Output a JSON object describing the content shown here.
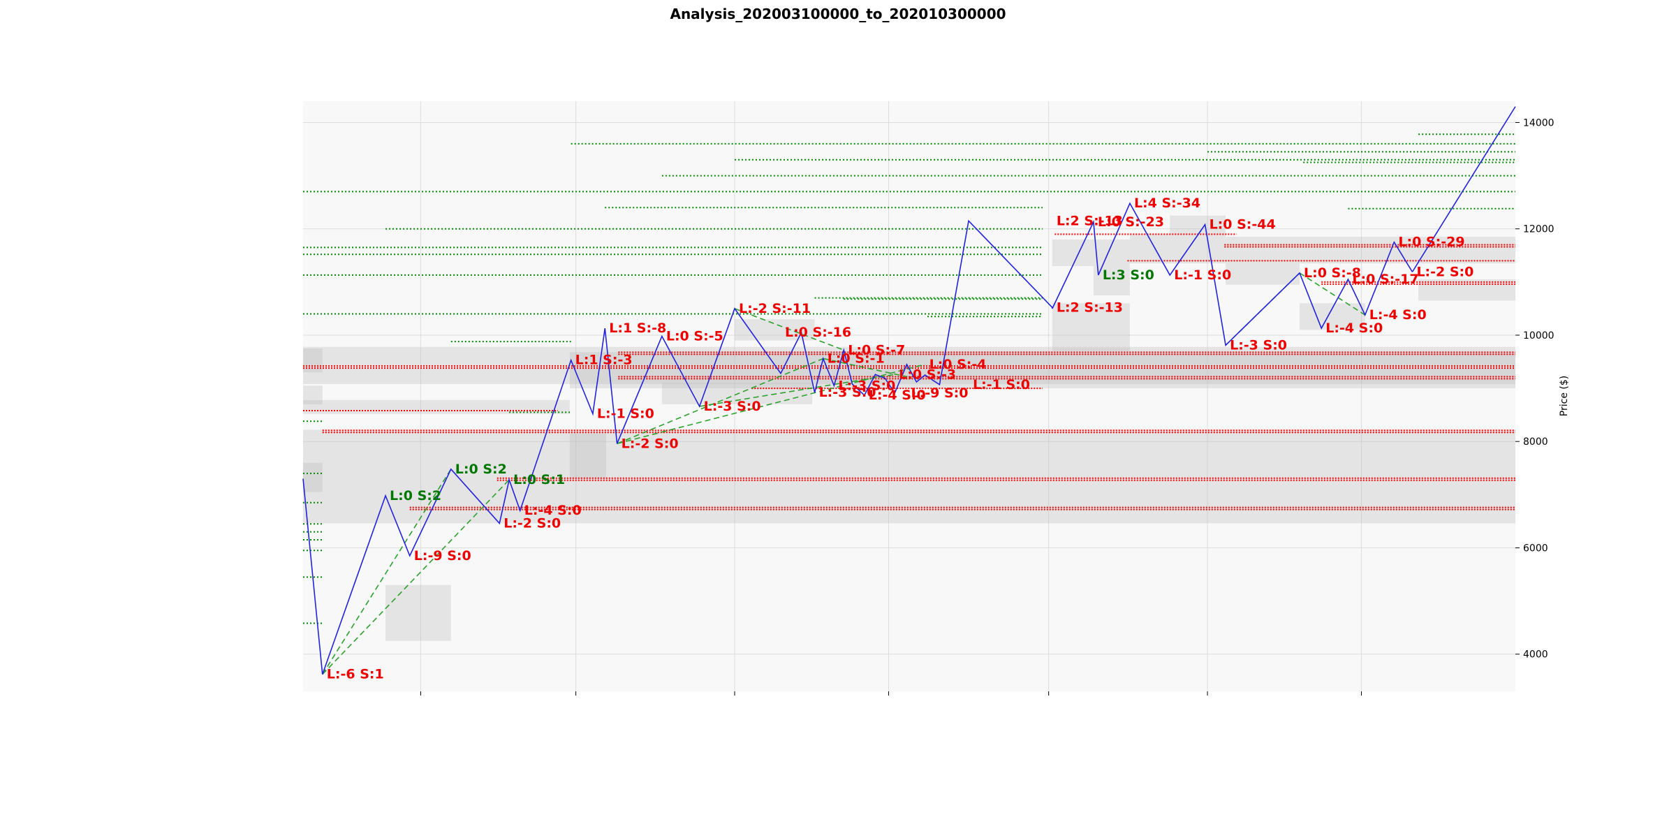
{
  "chart_data": {
    "type": "line",
    "title": "Analysis_202003100000_to_202010300000",
    "xlabel": "",
    "ylabel": "Price ($)",
    "ylim": [
      3300,
      14400
    ],
    "xlim": [
      0,
      100
    ],
    "y_ticks": [
      4000,
      6000,
      8000,
      10000,
      12000,
      14000
    ],
    "y_tick_labels": [
      "4000",
      "6000",
      "8000",
      "10000",
      "12000",
      "14000"
    ],
    "x_ticks": [
      9.7,
      22.5,
      35.6,
      48.3,
      61.5,
      74.6,
      87.3
    ],
    "grid": true,
    "colors": {
      "price_line": "#2222dd",
      "trend_line": "#2ca02c",
      "resistance": "#ee0000",
      "support": "#008800",
      "zone": "#bbbbbb",
      "label_red": "#ee0000",
      "label_green": "#007700"
    },
    "series": [
      {
        "x": [
          0,
          1.6,
          6.8,
          8.8,
          12.2,
          16.2,
          17,
          17.9,
          22.1,
          23.9,
          24.9,
          25.9,
          29.6,
          32.7,
          35.6,
          39.4,
          41.1,
          42.2,
          42.9,
          43.8,
          44.6,
          45.3,
          46.3,
          47.2,
          48,
          48.8,
          49.8,
          50.6,
          51.3,
          52.5,
          54.9,
          61.8,
          61.8,
          65.2,
          65.6,
          68.2,
          71.5,
          74.4,
          76.1,
          82.2,
          84,
          86.2,
          87.6,
          90,
          91.5
        ],
        "values": [
          7300,
          3620,
          6980,
          5850,
          7480,
          6460,
          7280,
          6700,
          9530,
          8520,
          10130,
          7960,
          9980,
          8660,
          10500,
          9280,
          10050,
          8920,
          9560,
          9050,
          9720,
          9080,
          8870,
          9260,
          9190,
          8910,
          9450,
          9120,
          9250,
          9070,
          12150,
          10520,
          10500,
          12130,
          11130,
          12480,
          11130,
          12080,
          9810,
          11170,
          10130,
          11050,
          10380,
          11750,
          11190
        ]
      },
      {
        "x": [
          91.5,
          100
        ],
        "values": [
          11190,
          14300
        ]
      }
    ],
    "annotations": [
      {
        "text": "L:-6 S:1",
        "x": 1.6,
        "y": 3620,
        "color": "red"
      },
      {
        "text": "L:0 S:2",
        "x": 6.8,
        "y": 6980,
        "color": "green"
      },
      {
        "text": "L:-9 S:0",
        "x": 8.8,
        "y": 5850,
        "color": "red"
      },
      {
        "text": "L:0 S:2",
        "x": 12.2,
        "y": 7480,
        "color": "green"
      },
      {
        "text": "L:-2 S:0",
        "x": 16.2,
        "y": 6460,
        "color": "red"
      },
      {
        "text": "L:0 S:1",
        "x": 17,
        "y": 7280,
        "color": "green"
      },
      {
        "text": "L:-4 S:0",
        "x": 17.9,
        "y": 6700,
        "color": "red"
      },
      {
        "text": "L:1 S:-3",
        "x": 22.1,
        "y": 9530,
        "color": "red"
      },
      {
        "text": "L:-1 S:0",
        "x": 23.9,
        "y": 8520,
        "color": "red"
      },
      {
        "text": "L:1 S:-8",
        "x": 24.9,
        "y": 10130,
        "color": "red"
      },
      {
        "text": "L:-2 S:0",
        "x": 25.9,
        "y": 7960,
        "color": "red"
      },
      {
        "text": "L:0 S:-5",
        "x": 29.6,
        "y": 9980,
        "color": "red"
      },
      {
        "text": "L:-3 S:0",
        "x": 32.7,
        "y": 8660,
        "color": "red"
      },
      {
        "text": "L:-2 S:-11",
        "x": 35.6,
        "y": 10500,
        "color": "red"
      },
      {
        "text": "L:0 S:-16",
        "x": 39.4,
        "y": 10050,
        "color": "red"
      },
      {
        "text": "L:-3 S:0",
        "x": 42.2,
        "y": 8920,
        "color": "red"
      },
      {
        "text": "L:0 S:-1",
        "x": 42.9,
        "y": 9560,
        "color": "red"
      },
      {
        "text": "L:-3 S:0",
        "x": 43.8,
        "y": 9050,
        "color": "red"
      },
      {
        "text": "L:0 S:-7",
        "x": 44.6,
        "y": 9720,
        "color": "red"
      },
      {
        "text": "L:-4 S:0",
        "x": 46.3,
        "y": 8870,
        "color": "red"
      },
      {
        "text": "L:0 S:-3",
        "x": 48.8,
        "y": 9260,
        "color": "red"
      },
      {
        "text": "L:0 S:-4",
        "x": 51.3,
        "y": 9450,
        "color": "red"
      },
      {
        "text": "L:-9 S:0",
        "x": 49.8,
        "y": 8910,
        "color": "red"
      },
      {
        "text": "L:-1 S:0",
        "x": 54.9,
        "y": 9070,
        "color": "red"
      },
      {
        "text": "L:2 S:-13",
        "x": 61.8,
        "y": 12150,
        "color": "red"
      },
      {
        "text": "L:2 S:-13",
        "x": 61.8,
        "y": 10520,
        "color": "red"
      },
      {
        "text": "L:0 S:-23",
        "x": 65.2,
        "y": 12130,
        "color": "red"
      },
      {
        "text": "L:3 S:0",
        "x": 65.6,
        "y": 11130,
        "color": "green"
      },
      {
        "text": "L:4 S:-34",
        "x": 68.2,
        "y": 12480,
        "color": "red"
      },
      {
        "text": "L:-1 S:0",
        "x": 71.5,
        "y": 11130,
        "color": "red"
      },
      {
        "text": "L:0 S:-44",
        "x": 74.4,
        "y": 12080,
        "color": "red"
      },
      {
        "text": "L:-3 S:0",
        "x": 76.1,
        "y": 9810,
        "color": "red"
      },
      {
        "text": "L:0 S:-8",
        "x": 82.2,
        "y": 11170,
        "color": "red"
      },
      {
        "text": "L:-4 S:0",
        "x": 84,
        "y": 10130,
        "color": "red"
      },
      {
        "text": "L:0 S:-17",
        "x": 86.2,
        "y": 11050,
        "color": "red"
      },
      {
        "text": "L:-4 S:0",
        "x": 87.6,
        "y": 10380,
        "color": "red"
      },
      {
        "text": "L:0 S:-29",
        "x": 90,
        "y": 11750,
        "color": "red"
      },
      {
        "text": "L:-2 S:0",
        "x": 91.5,
        "y": 11190,
        "color": "red"
      }
    ],
    "trend_lines": [
      {
        "x": [
          1.6,
          12.2
        ],
        "y": [
          3620,
          7480
        ]
      },
      {
        "x": [
          1.6,
          17
        ],
        "y": [
          3620,
          7280
        ]
      },
      {
        "x": [
          25.9,
          42.9
        ],
        "y": [
          7960,
          9560
        ]
      },
      {
        "x": [
          25.9,
          51.3
        ],
        "y": [
          7960,
          9450
        ]
      },
      {
        "x": [
          32.7,
          48.8
        ],
        "y": [
          8660,
          9260
        ]
      },
      {
        "x": [
          35.6,
          44.6
        ],
        "y": [
          10500,
          9720
        ]
      },
      {
        "x": [
          42.9,
          49.8
        ],
        "y": [
          9560,
          9220
        ]
      },
      {
        "x": [
          76.1,
          82.2
        ],
        "y": [
          9810,
          11170
        ]
      },
      {
        "x": [
          82.2,
          87.6
        ],
        "y": [
          11170,
          10380
        ]
      }
    ],
    "resistance_levels": [
      {
        "y": 9420,
        "x0": 0,
        "x1": 100,
        "double": true
      },
      {
        "y": 9220,
        "x0": 26,
        "x1": 100,
        "double": true
      },
      {
        "y": 9680,
        "x0": 26,
        "x1": 100,
        "double": true
      },
      {
        "y": 8210,
        "x0": 1.6,
        "x1": 100,
        "double": true
      },
      {
        "y": 7310,
        "x0": 16,
        "x1": 100,
        "double": true
      },
      {
        "y": 6760,
        "x0": 8.8,
        "x1": 100,
        "double": true
      },
      {
        "y": 11700,
        "x0": 76,
        "x1": 100,
        "double": true
      },
      {
        "y": 11000,
        "x0": 84,
        "x1": 100,
        "double": true
      },
      {
        "y": 11400,
        "x0": 68,
        "x1": 100,
        "double": false
      },
      {
        "y": 11900,
        "x0": 62,
        "x1": 77,
        "double": false
      },
      {
        "y": 8580,
        "x0": 0,
        "x1": 21,
        "double": false
      },
      {
        "y": 9000,
        "x0": 37,
        "x1": 61,
        "double": false
      }
    ],
    "support_levels": [
      {
        "y": 13600,
        "x0": 22.1,
        "x1": 100
      },
      {
        "y": 13300,
        "x0": 35.6,
        "x1": 100
      },
      {
        "y": 13000,
        "x0": 29.6,
        "x1": 100
      },
      {
        "y": 12700,
        "x0": 0,
        "x1": 100
      },
      {
        "y": 12400,
        "x0": 24.9,
        "x1": 61
      },
      {
        "y": 12000,
        "x0": 6.8,
        "x1": 61
      },
      {
        "y": 11650,
        "x0": 0,
        "x1": 61
      },
      {
        "y": 11520,
        "x0": 0,
        "x1": 61
      },
      {
        "y": 11130,
        "x0": 0,
        "x1": 61
      },
      {
        "y": 10400,
        "x0": 0,
        "x1": 61
      },
      {
        "y": 10700,
        "x0": 42.2,
        "x1": 61
      },
      {
        "y": 10680,
        "x0": 44.6,
        "x1": 61
      },
      {
        "y": 10350,
        "x0": 51.5,
        "x1": 61
      },
      {
        "y": 9880,
        "x0": 12.2,
        "x1": 22.1
      },
      {
        "y": 8550,
        "x0": 17,
        "x1": 22.1
      },
      {
        "y": 13780,
        "x0": 92,
        "x1": 100
      },
      {
        "y": 13450,
        "x0": 74.6,
        "x1": 100
      },
      {
        "y": 13250,
        "x0": 82.5,
        "x1": 100
      },
      {
        "y": 12380,
        "x0": 86.2,
        "x1": 100
      },
      {
        "y": 8380,
        "x0": 0,
        "x1": 1.6
      },
      {
        "y": 7400,
        "x0": 0,
        "x1": 1.6
      },
      {
        "y": 6850,
        "x0": 0,
        "x1": 1.6
      },
      {
        "y": 6450,
        "x0": 0,
        "x1": 1.6
      },
      {
        "y": 6300,
        "x0": 0,
        "x1": 1.6
      },
      {
        "y": 6150,
        "x0": 0,
        "x1": 1.6
      },
      {
        "y": 5950,
        "x0": 0,
        "x1": 1.6
      },
      {
        "y": 5450,
        "x0": 0,
        "x1": 1.6
      },
      {
        "y": 4580,
        "x0": 0,
        "x1": 1.6
      }
    ],
    "zones": [
      {
        "x0": 0,
        "x1": 100,
        "y0": 9080,
        "y1": 9780
      },
      {
        "x0": 0,
        "x1": 22,
        "y0": 8520,
        "y1": 8780
      },
      {
        "x0": 0,
        "x1": 100,
        "y0": 6460,
        "y1": 8220
      },
      {
        "x0": 22,
        "x1": 100,
        "y0": 9000,
        "y1": 9680
      },
      {
        "x0": 6.8,
        "x1": 12.2,
        "y0": 4250,
        "y1": 5300
      },
      {
        "x0": 22,
        "x1": 25,
        "y0": 7300,
        "y1": 8150
      },
      {
        "x0": 0,
        "x1": 1.6,
        "y0": 7050,
        "y1": 7600
      },
      {
        "x0": 0,
        "x1": 1.6,
        "y0": 8700,
        "y1": 9050
      },
      {
        "x0": 0,
        "x1": 1.6,
        "y0": 9300,
        "y1": 9750
      },
      {
        "x0": 61.8,
        "x1": 68.2,
        "y0": 9700,
        "y1": 10600
      },
      {
        "x0": 61.8,
        "x1": 68.2,
        "y0": 11300,
        "y1": 11800
      },
      {
        "x0": 65.2,
        "x1": 68.2,
        "y0": 10750,
        "y1": 11300
      },
      {
        "x0": 68.2,
        "x1": 76.1,
        "y0": 11350,
        "y1": 11900
      },
      {
        "x0": 71.5,
        "x1": 76.1,
        "y0": 11900,
        "y1": 12250
      },
      {
        "x0": 76.1,
        "x1": 100,
        "y0": 11350,
        "y1": 11850
      },
      {
        "x0": 76.1,
        "x1": 82.2,
        "y0": 10950,
        "y1": 11350
      },
      {
        "x0": 82.2,
        "x1": 87.6,
        "y0": 10100,
        "y1": 10600
      },
      {
        "x0": 92,
        "x1": 100,
        "y0": 10650,
        "y1": 11050
      },
      {
        "x0": 35.6,
        "x1": 42.2,
        "y0": 9900,
        "y1": 10300
      },
      {
        "x0": 29.6,
        "x1": 42,
        "y0": 8700,
        "y1": 9100
      }
    ]
  }
}
